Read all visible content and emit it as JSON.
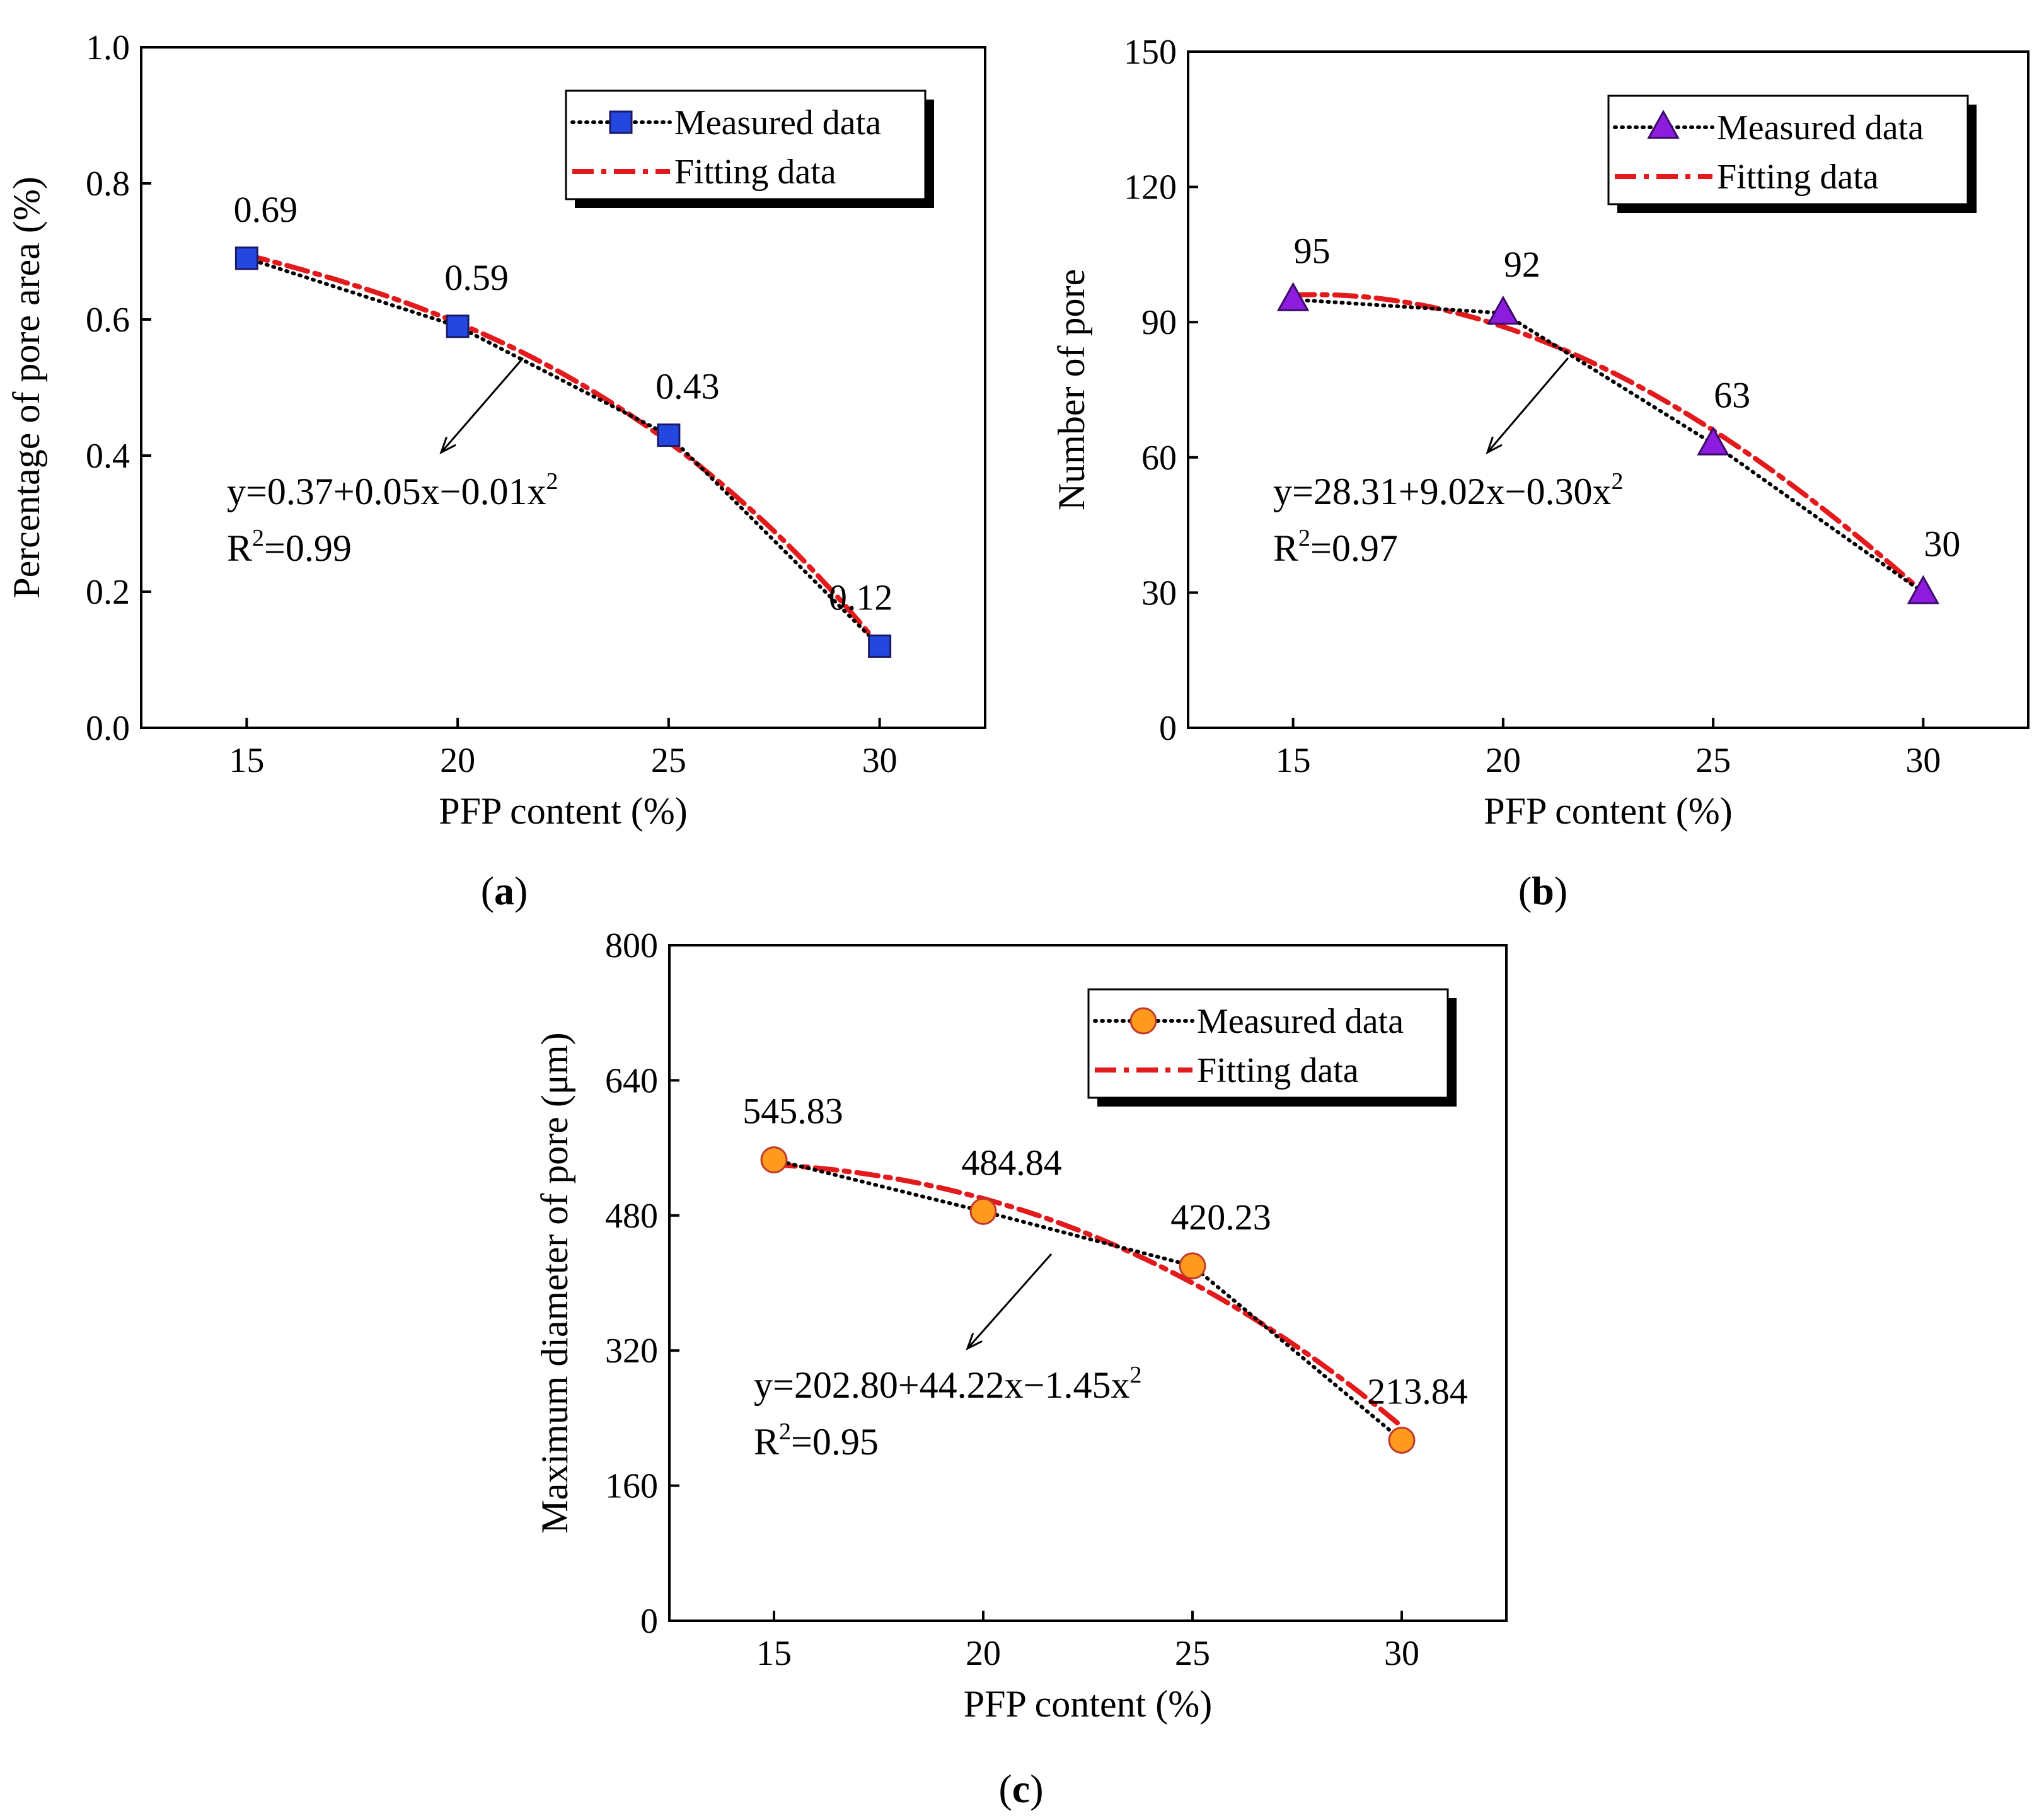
{
  "chart_data": [
    {
      "type": "line",
      "panel": "(a)",
      "panel_letter": "a",
      "x": [
        15,
        20,
        25,
        30
      ],
      "xlim": [
        12.5,
        32.5
      ],
      "xticks": [
        15,
        20,
        25,
        30
      ],
      "ylim": [
        0,
        1.0
      ],
      "yticks": [
        0.0,
        0.2,
        0.4,
        0.6,
        0.8,
        1.0
      ],
      "ytick_labels": [
        "0.0",
        "0.2",
        "0.4",
        "0.6",
        "0.8",
        "1.0"
      ],
      "xlabel": "PFP content (%)",
      "ylabel": "Percentage of pore area (%)",
      "series": [
        {
          "name": "Measured data",
          "values": [
            0.69,
            0.59,
            0.43,
            0.12
          ],
          "marker": "square",
          "color": "#2447e0",
          "line_color": "#000000",
          "line_style": "dotted"
        },
        {
          "name": "Fitting data",
          "formula": {
            "a": 0.37,
            "b": 0.05,
            "c": -0.01
          },
          "fit_values": [
            0.695,
            0.595,
            0.42,
            0.12
          ],
          "color": "#e31a1c",
          "line_style": "dash-dot"
        }
      ],
      "data_labels": [
        "0.69",
        "0.59",
        "0.43",
        "0.12"
      ],
      "equation": {
        "line1": "y=0.37+0.05x−0.01x",
        "sup": "2",
        "line2_pre": "R",
        "line2_sup": "2",
        "line2_post": "=0.99"
      },
      "legend": {
        "placement": "top-right",
        "measured": "Measured data",
        "fitting": "Fitting data"
      }
    },
    {
      "type": "line",
      "panel": "(b)",
      "panel_letter": "b",
      "x": [
        15,
        20,
        25,
        30
      ],
      "xlim": [
        12.5,
        32.5
      ],
      "xticks": [
        15,
        20,
        25,
        30
      ],
      "ylim": [
        0,
        150
      ],
      "yticks": [
        0,
        30,
        60,
        90,
        120,
        150
      ],
      "ytick_labels": [
        "0",
        "30",
        "60",
        "90",
        "120",
        "150"
      ],
      "xlabel": "PFP content (%)",
      "ylabel": "Number of pore",
      "series": [
        {
          "name": "Measured data",
          "values": [
            95,
            92,
            63,
            30
          ],
          "marker": "triangle",
          "color": "#8e1cdf",
          "line_color": "#000000",
          "line_style": "dotted"
        },
        {
          "name": "Fitting data",
          "formula": {
            "a": 28.31,
            "b": 9.02,
            "c": -0.3
          },
          "fit_values": [
            96,
            89,
            66,
            30
          ],
          "color": "#e31a1c",
          "line_style": "dash-dot"
        }
      ],
      "data_labels": [
        "95",
        "92",
        "63",
        "30"
      ],
      "equation": {
        "line1": "y=28.31+9.02x−0.30x",
        "sup": "2",
        "line2_pre": "R",
        "line2_sup": "2",
        "line2_post": "=0.97"
      },
      "legend": {
        "placement": "top-right",
        "measured": "Measured data",
        "fitting": "Fitting data"
      }
    },
    {
      "type": "line",
      "panel": "(c)",
      "panel_letter": "c",
      "x": [
        15,
        20,
        25,
        30
      ],
      "xlim": [
        12.5,
        32.5
      ],
      "xticks": [
        15,
        20,
        25,
        30
      ],
      "ylim": [
        0,
        800
      ],
      "yticks": [
        0,
        160,
        320,
        480,
        640,
        800
      ],
      "ytick_labels": [
        "0",
        "160",
        "320",
        "480",
        "640",
        "800"
      ],
      "xlabel": "PFP content (%)",
      "ylabel": "Maximum diameter of pore (μm)",
      "series": [
        {
          "name": "Measured data",
          "values": [
            545.83,
            484.84,
            420.23,
            213.84
          ],
          "marker": "circle",
          "color": "#ff9a1f",
          "line_color": "#000000",
          "line_style": "dotted"
        },
        {
          "name": "Fitting data",
          "formula": {
            "a": 202.8,
            "b": 44.22,
            "c": -1.45
          },
          "fit_values": [
            540,
            500,
            400,
            230
          ],
          "color": "#e31a1c",
          "line_style": "dash-dot"
        }
      ],
      "data_labels": [
        "545.83",
        "484.84",
        "420.23",
        "213.84"
      ],
      "equation": {
        "line1": "y=202.80+44.22x−1.45x",
        "sup": "2",
        "line2_pre": "R",
        "line2_sup": "2",
        "line2_post": "=0.95"
      },
      "legend": {
        "placement": "top-right",
        "measured": "Measured data",
        "fitting": "Fitting data"
      }
    }
  ]
}
